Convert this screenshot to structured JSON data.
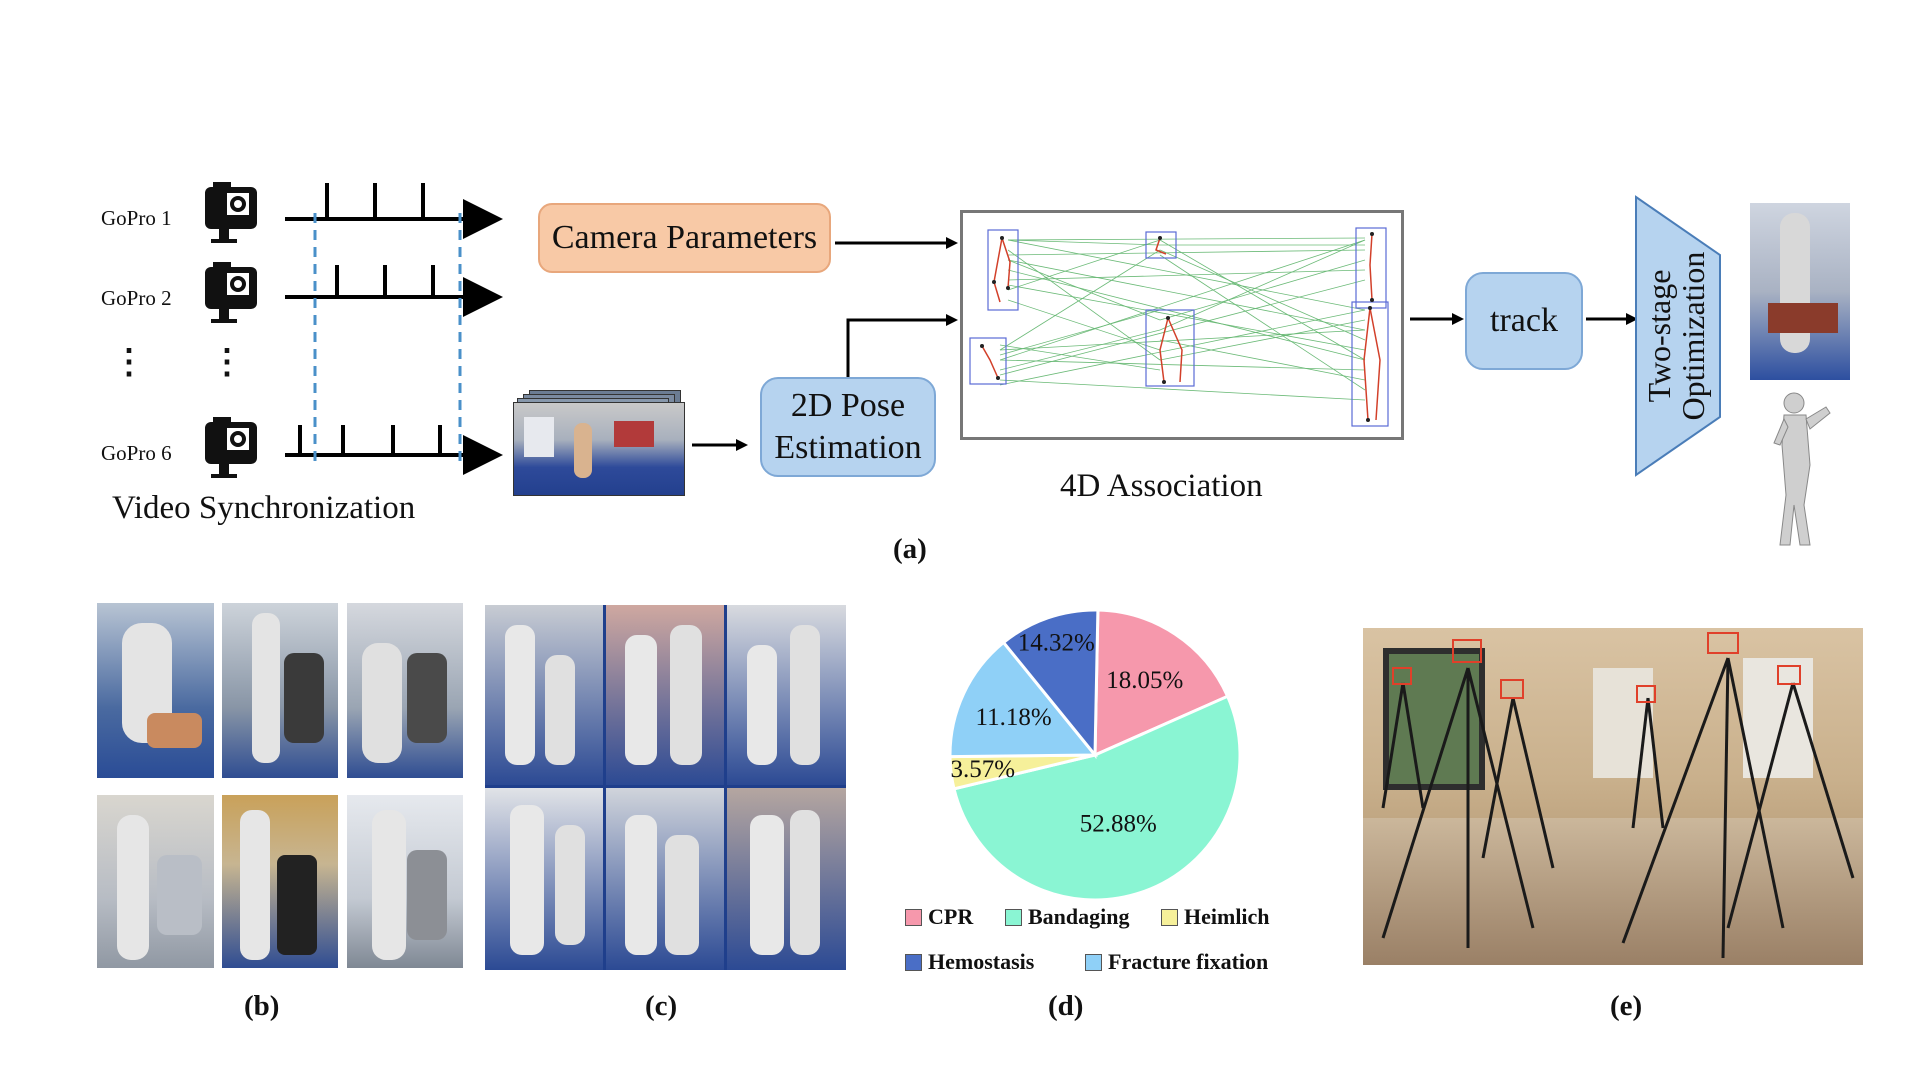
{
  "panel_a": {
    "gopro_labels": [
      "GoPro 1",
      "GoPro 2",
      "GoPro 6"
    ],
    "ellipsis": "⋮",
    "video_sync": "Video Synchronization",
    "camera_parameters": "Camera Parameters",
    "pose_line1": "2D Pose",
    "pose_line2": "Estimation",
    "association": "4D Association",
    "track": "track",
    "opt_line1": "Two-stage",
    "opt_line2": "Optimization",
    "caption": "(a)"
  },
  "panel_b": {
    "caption": "(b)"
  },
  "panel_c": {
    "caption": "(c)"
  },
  "panel_d": {
    "caption": "(d)",
    "slice_labels": [
      "18.05%",
      "52.88%",
      "3.57%",
      "14.32%",
      "11.18%"
    ],
    "legend": [
      "CPR",
      "Bandaging",
      "Heimlich",
      "Hemostasis",
      "Fracture fixation"
    ]
  },
  "panel_e": {
    "caption": "(e)"
  },
  "chart_data": {
    "type": "pie",
    "categories": [
      "CPR",
      "Bandaging",
      "Heimlich",
      "Fracture fixation",
      "Hemostasis"
    ],
    "values": [
      18.05,
      52.88,
      3.57,
      14.32,
      11.18
    ],
    "colors": [
      "#f698ac",
      "#8af5d3",
      "#f6f09a",
      "#8fd0f7",
      "#4a6ec6"
    ],
    "title": "",
    "legend_placement": "bottom"
  }
}
